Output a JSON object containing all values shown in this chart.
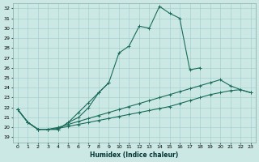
{
  "xlabel": "Humidex (Indice chaleur)",
  "bg_color": "#cce8e4",
  "grid_color": "#99cccc",
  "line_color": "#1a6b5a",
  "xlim": [
    -0.5,
    23.5
  ],
  "ylim": [
    18.5,
    32.5
  ],
  "yticks": [
    19,
    20,
    21,
    22,
    23,
    24,
    25,
    26,
    27,
    28,
    29,
    30,
    31,
    32
  ],
  "xticks": [
    0,
    1,
    2,
    3,
    4,
    5,
    6,
    7,
    8,
    9,
    10,
    11,
    12,
    13,
    14,
    15,
    16,
    17,
    18,
    19,
    20,
    21,
    22,
    23
  ],
  "line1": {
    "x": [
      0,
      1,
      2,
      3,
      4,
      5,
      6,
      7,
      8,
      9,
      10,
      11,
      12,
      13,
      14,
      15,
      16,
      17,
      18
    ],
    "y": [
      21.8,
      20.5,
      19.8,
      19.8,
      19.8,
      20.5,
      21.5,
      22.5,
      23.5,
      24.5,
      27.5,
      28.2,
      30.2,
      30.0,
      32.2,
      31.5,
      31.0,
      25.8,
      26.0
    ]
  },
  "line2": {
    "x": [
      0,
      1,
      2,
      3,
      4,
      5,
      6,
      7,
      8,
      9
    ],
    "y": [
      21.8,
      20.5,
      19.8,
      19.8,
      19.8,
      20.5,
      21.0,
      22.0,
      23.5,
      24.5
    ]
  },
  "line3": {
    "x": [
      0,
      1,
      2,
      3,
      4,
      5,
      6,
      7,
      8,
      9,
      10,
      11,
      12,
      13,
      14,
      15,
      16,
      17,
      18,
      19,
      20,
      21,
      22,
      23
    ],
    "y": [
      21.8,
      20.5,
      19.8,
      19.8,
      20.0,
      20.3,
      20.6,
      20.9,
      21.2,
      21.5,
      21.8,
      22.1,
      22.4,
      22.7,
      23.0,
      23.3,
      23.6,
      23.9,
      24.2,
      24.5,
      24.8,
      24.2,
      23.8,
      23.5
    ]
  },
  "line4": {
    "x": [
      0,
      1,
      2,
      3,
      4,
      5,
      6,
      7,
      8,
      9,
      10,
      11,
      12,
      13,
      14,
      15,
      16,
      17,
      18,
      19,
      20,
      21,
      22,
      23
    ],
    "y": [
      21.8,
      20.5,
      19.8,
      19.8,
      19.9,
      20.1,
      20.3,
      20.5,
      20.7,
      20.9,
      21.1,
      21.3,
      21.5,
      21.7,
      21.9,
      22.1,
      22.4,
      22.7,
      23.0,
      23.3,
      23.5,
      23.7,
      23.8,
      23.5
    ]
  }
}
